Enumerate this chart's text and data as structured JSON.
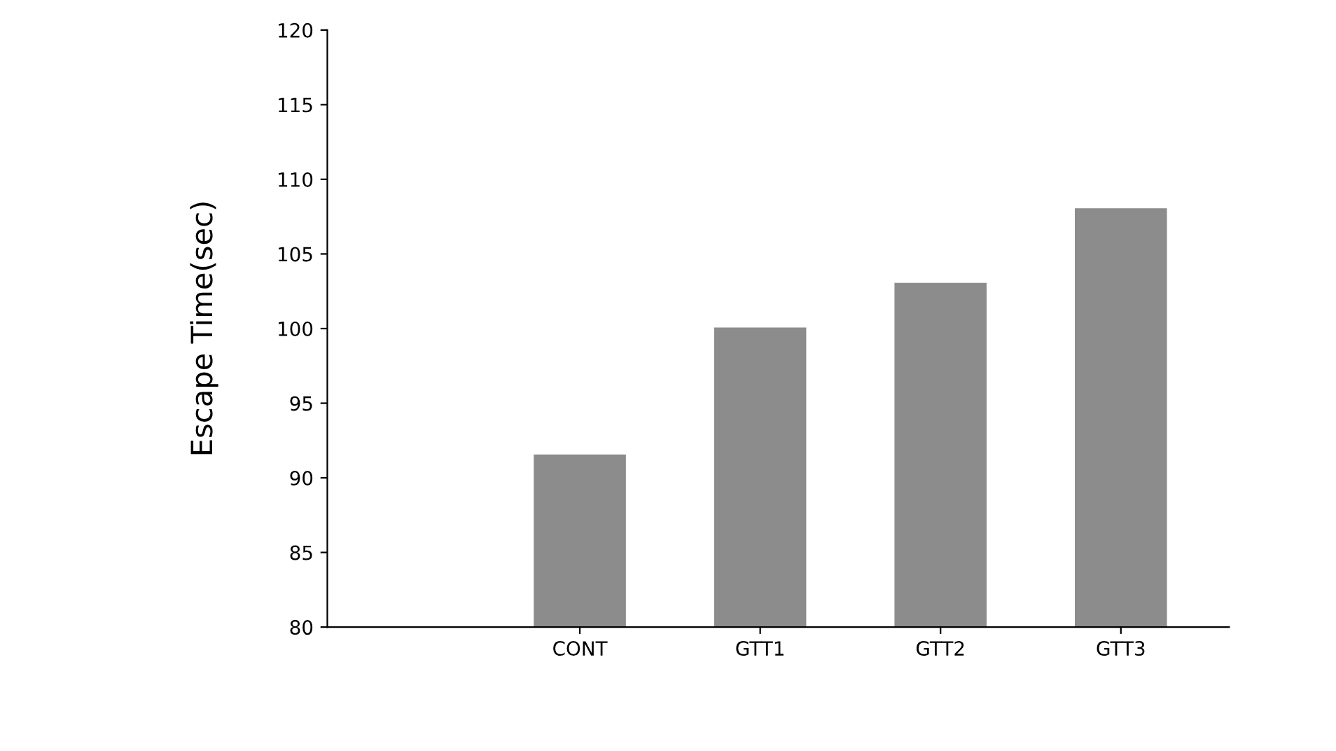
{
  "chart_data": {
    "type": "bar",
    "ylabel": "Escape Time(sec)",
    "categories": [
      "CONT",
      "GTT1",
      "GTT2",
      "GTT3"
    ],
    "values": [
      91.5,
      100,
      103,
      108
    ],
    "color": "#8c8c8c",
    "ylim": [
      80,
      120
    ],
    "yticks": [
      80,
      85,
      90,
      95,
      100,
      105,
      110,
      115,
      120
    ],
    "grid": false,
    "legend": false
  }
}
